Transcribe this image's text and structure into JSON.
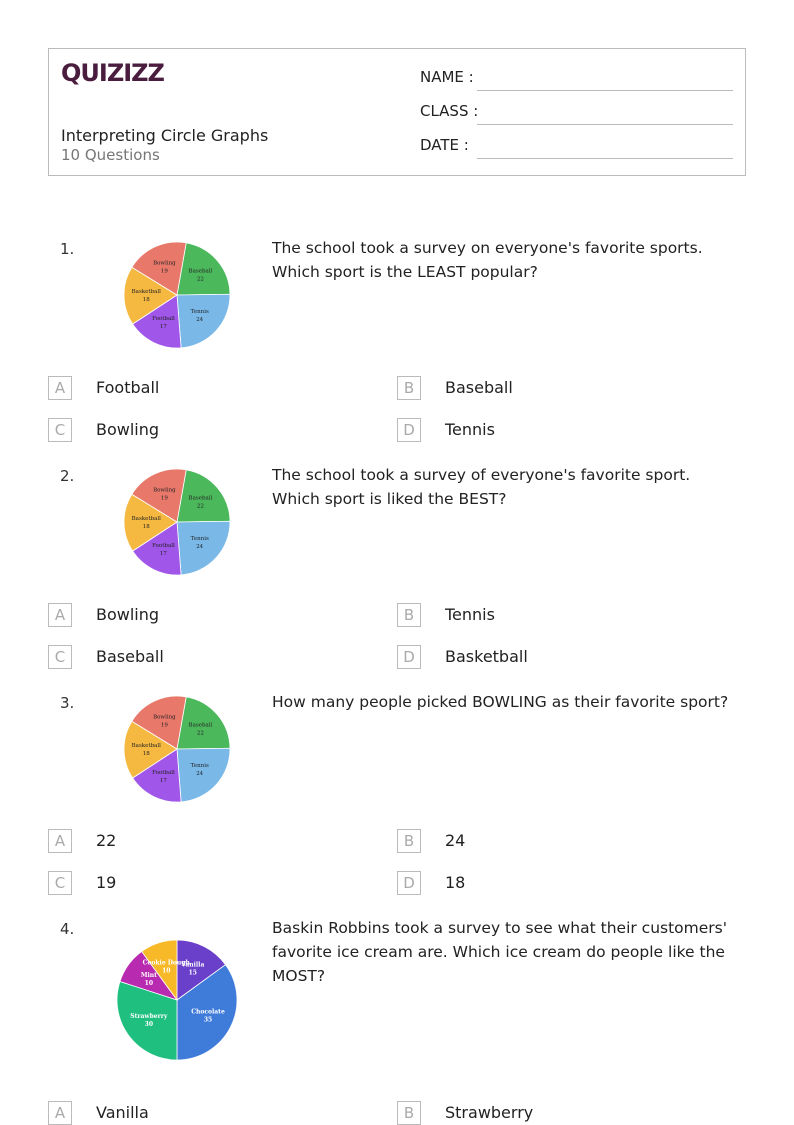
{
  "header": {
    "logo": "QUIZIZZ",
    "title": "Interpreting Circle Graphs",
    "subtitle": "10 Questions",
    "fields": [
      "NAME :",
      "CLASS :",
      "DATE  :"
    ]
  },
  "questions": [
    {
      "number": "1.",
      "text": "The school took a survey on everyone's favorite sports. Which sport is the LEAST popular?",
      "chart_data": {
        "type": "pie",
        "categories": [
          "Baseball",
          "Tennis",
          "Football",
          "Basketball",
          "Bowling"
        ],
        "values": [
          22,
          24,
          17,
          18,
          19
        ],
        "colors": [
          "#4cb85c",
          "#7ab8e8",
          "#a056e8",
          "#f5b942",
          "#e8786a"
        ]
      },
      "options": [
        {
          "letter": "A",
          "text": "Football"
        },
        {
          "letter": "B",
          "text": "Baseball"
        },
        {
          "letter": "C",
          "text": "Bowling"
        },
        {
          "letter": "D",
          "text": "Tennis"
        }
      ]
    },
    {
      "number": "2.",
      "text": "The school took a survey of everyone's favorite sport. Which sport is liked the BEST?",
      "chart_data": {
        "type": "pie",
        "categories": [
          "Baseball",
          "Tennis",
          "Football",
          "Basketball",
          "Bowling"
        ],
        "values": [
          22,
          24,
          17,
          18,
          19
        ],
        "colors": [
          "#4cb85c",
          "#7ab8e8",
          "#a056e8",
          "#f5b942",
          "#e8786a"
        ]
      },
      "options": [
        {
          "letter": "A",
          "text": "Bowling"
        },
        {
          "letter": "B",
          "text": "Tennis"
        },
        {
          "letter": "C",
          "text": "Baseball"
        },
        {
          "letter": "D",
          "text": "Basketball"
        }
      ]
    },
    {
      "number": "3.",
      "text": "How many people picked BOWLING as their favorite sport?",
      "chart_data": {
        "type": "pie",
        "categories": [
          "Baseball",
          "Tennis",
          "Football",
          "Basketball",
          "Bowling"
        ],
        "values": [
          22,
          24,
          17,
          18,
          19
        ],
        "colors": [
          "#4cb85c",
          "#7ab8e8",
          "#a056e8",
          "#f5b942",
          "#e8786a"
        ]
      },
      "options": [
        {
          "letter": "A",
          "text": "22"
        },
        {
          "letter": "B",
          "text": "24"
        },
        {
          "letter": "C",
          "text": "19"
        },
        {
          "letter": "D",
          "text": "18"
        }
      ]
    },
    {
      "number": "4.",
      "text": "Baskin Robbins took a survey to see what their customers' favorite ice cream are. Which ice cream do people like the MOST?",
      "chart_data": {
        "type": "pie",
        "categories": [
          "Vanilla",
          "Chocolate",
          "Strawberry",
          "Mint",
          "Cookie Dough"
        ],
        "values": [
          15,
          35,
          30,
          10,
          10
        ],
        "colors": [
          "#6a3fc9",
          "#3f7bd9",
          "#1fbf7f",
          "#b82bb0",
          "#f7b928"
        ]
      },
      "options": [
        {
          "letter": "A",
          "text": "Vanilla"
        },
        {
          "letter": "B",
          "text": "Strawberry"
        }
      ]
    }
  ]
}
